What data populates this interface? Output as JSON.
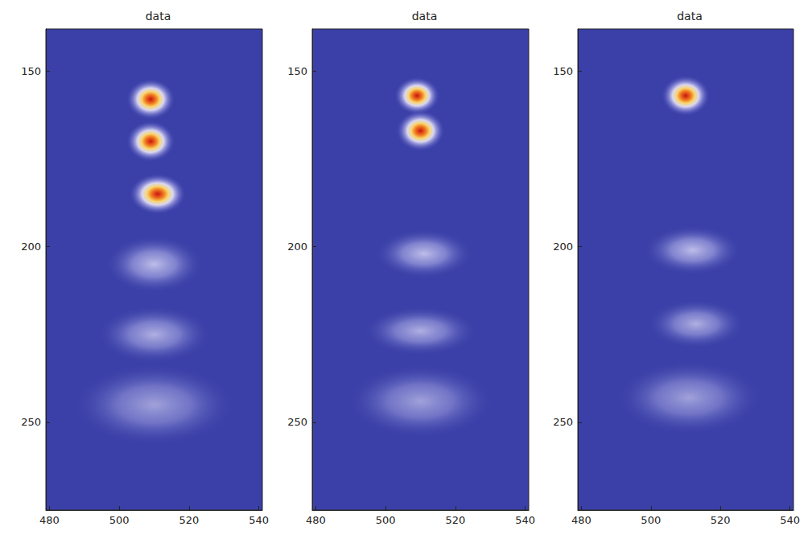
{
  "chart_data": [
    {
      "type": "scatter",
      "title": "data",
      "x": [
        509,
        509,
        511,
        510,
        510,
        510
      ],
      "y": [
        158,
        170,
        185,
        205,
        225,
        245
      ],
      "x_width": [
        3,
        3,
        3.5,
        6,
        7,
        10
      ],
      "y_width": [
        2.5,
        2.5,
        2.5,
        3.5,
        3.5,
        5
      ],
      "intensity": [
        1.0,
        0.95,
        0.8,
        0.45,
        0.4,
        0.35
      ],
      "xlim": [
        479,
        541
      ],
      "xticks": [
        480,
        500,
        520,
        540
      ],
      "ylim": [
        138,
        275
      ],
      "yticks": [
        150,
        200,
        250
      ],
      "grid": false
    },
    {
      "type": "scatter",
      "title": "data",
      "x": [
        509,
        510,
        511,
        510,
        510
      ],
      "y": [
        157,
        167,
        202,
        224,
        244
      ],
      "x_width": [
        2.8,
        3,
        6,
        7,
        9
      ],
      "y_width": [
        2.3,
        2.5,
        3,
        3,
        4.5
      ],
      "intensity": [
        1.0,
        0.95,
        0.45,
        0.4,
        0.35
      ],
      "xlim": [
        479,
        541
      ],
      "xticks": [
        480,
        500,
        520,
        540
      ],
      "ylim": [
        138,
        275
      ],
      "yticks": [
        150,
        200,
        250
      ],
      "grid": false
    },
    {
      "type": "scatter",
      "title": "data",
      "x": [
        510,
        512,
        513,
        511
      ],
      "y": [
        157,
        201,
        222,
        243
      ],
      "x_width": [
        3,
        6,
        6,
        9
      ],
      "y_width": [
        2.5,
        3,
        3,
        4.5
      ],
      "intensity": [
        1.0,
        0.45,
        0.4,
        0.35
      ],
      "xlim": [
        479,
        541
      ],
      "xticks": [
        480,
        500,
        520,
        540
      ],
      "ylim": [
        138,
        275
      ],
      "yticks": [
        150,
        200,
        250
      ],
      "grid": false
    }
  ]
}
